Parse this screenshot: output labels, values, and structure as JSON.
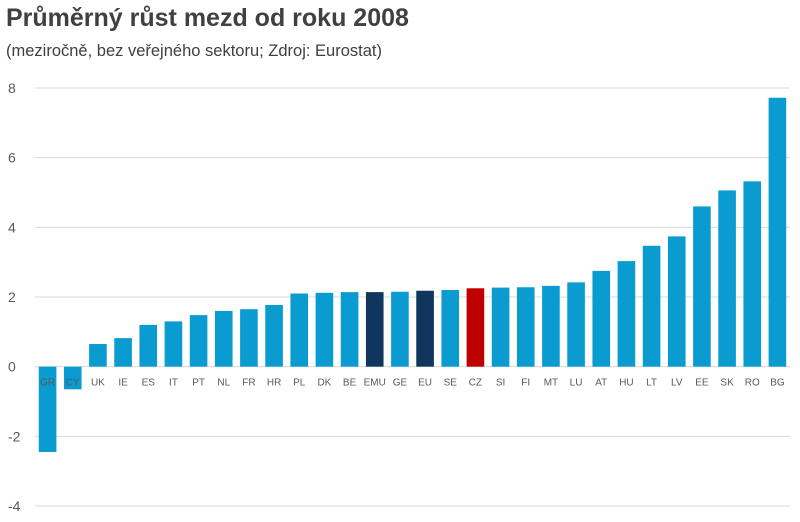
{
  "chart_data": {
    "type": "bar",
    "title": "Průměrný růst mezd od roku 2008",
    "subtitle": "(meziročně, bez veřejného sektoru; Zdroj: Eurostat)",
    "xlabel": "",
    "ylabel": "",
    "ylim": [
      -4,
      8
    ],
    "yticks": [
      8,
      6,
      4,
      2,
      0,
      -2,
      -4
    ],
    "grid": true,
    "categories": [
      "GR",
      "CY",
      "UK",
      "IE",
      "ES",
      "IT",
      "PT",
      "NL",
      "FR",
      "HR",
      "PL",
      "DK",
      "BE",
      "EMU",
      "GE",
      "EU",
      "SE",
      "CZ",
      "SI",
      "FI",
      "MT",
      "LU",
      "AT",
      "HU",
      "LT",
      "LV",
      "EE",
      "SK",
      "RO",
      "BG"
    ],
    "values": [
      -2.45,
      -0.65,
      0.65,
      0.82,
      1.2,
      1.3,
      1.48,
      1.6,
      1.65,
      1.77,
      2.1,
      2.12,
      2.14,
      2.14,
      2.15,
      2.18,
      2.2,
      2.25,
      2.27,
      2.28,
      2.32,
      2.42,
      2.75,
      3.03,
      3.47,
      3.74,
      4.6,
      5.06,
      5.32,
      7.72
    ],
    "colors": {
      "default": "#0a9bd0",
      "EMU": "#10365d",
      "EU": "#10365d",
      "CZ": "#c00000",
      "grid": "#d9d9d9",
      "zero_line": "#d9d9d9"
    }
  }
}
